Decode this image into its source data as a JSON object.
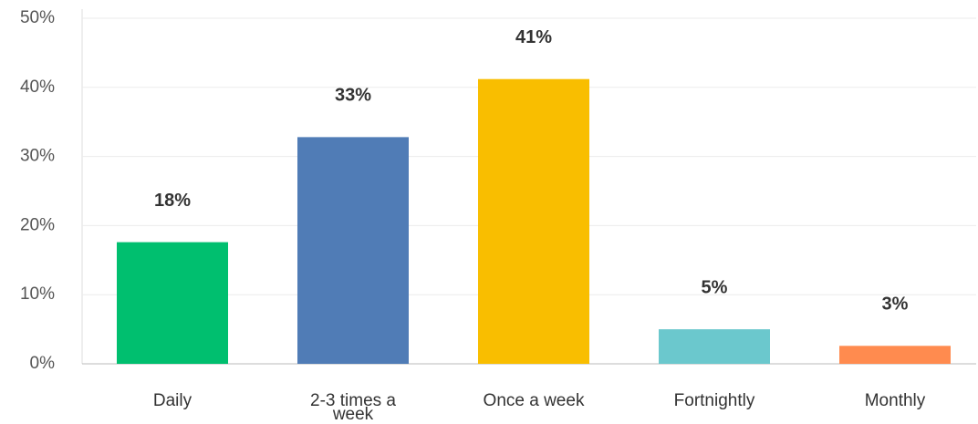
{
  "chart_data": {
    "type": "bar",
    "categories": [
      "Daily",
      "2-3 times a week",
      "Once a week",
      "Fortnightly",
      "Monthly"
    ],
    "values": [
      17.6,
      32.8,
      41.2,
      5.0,
      2.6
    ],
    "value_labels": [
      "18%",
      "33%",
      "41%",
      "5%",
      "3%"
    ],
    "colors": [
      "#00bf6f",
      "#507cb6",
      "#f9be00",
      "#6bc8cd",
      "#ff8b4f"
    ],
    "ylim": [
      0,
      50
    ],
    "yticks": [
      {
        "value": 0,
        "label": "0%"
      },
      {
        "value": 10,
        "label": "10%"
      },
      {
        "value": 20,
        "label": "20%"
      },
      {
        "value": 30,
        "label": "30%"
      },
      {
        "value": 40,
        "label": "40%"
      },
      {
        "value": 50,
        "label": "50%"
      }
    ],
    "grid": true
  }
}
